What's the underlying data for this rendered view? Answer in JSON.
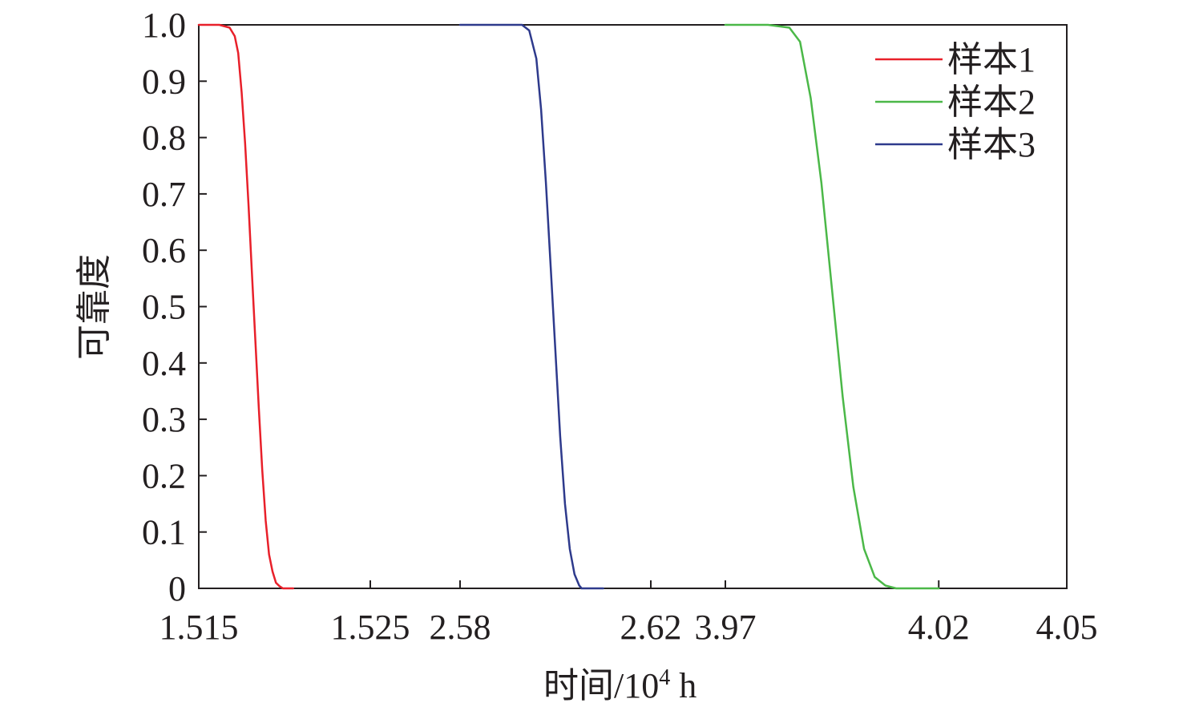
{
  "chart_data": {
    "type": "line",
    "xlabel_main": "时间/10",
    "xlabel_sup": "4",
    "xlabel_unit": " h",
    "ylabel": "可靠度",
    "ylim": [
      0,
      1.0
    ],
    "yticks": [
      "0",
      "0.1",
      "0.2",
      "0.3",
      "0.4",
      "0.5",
      "0.6",
      "0.7",
      "0.8",
      "0.9",
      "1.0"
    ],
    "x_segments": [
      {
        "range": [
          1.515,
          1.525
        ],
        "tick_labels": [
          "1.515",
          "1.525"
        ]
      },
      {
        "range": [
          2.58,
          2.62
        ],
        "tick_labels": [
          "2.58",
          "2.62"
        ]
      },
      {
        "range": [
          3.97,
          4.05
        ],
        "tick_labels": [
          "3.97",
          "4.02",
          "4.05"
        ]
      }
    ],
    "grid": false,
    "legend_position": "top-right",
    "series": [
      {
        "name": "样本1",
        "color": "#e8202a",
        "segment": 0,
        "x": [
          1.515,
          1.5162,
          1.5168,
          1.5171,
          1.5173,
          1.5175,
          1.5177,
          1.5179,
          1.5181,
          1.5183,
          1.5185,
          1.5187,
          1.5189,
          1.5191,
          1.5193,
          1.5195,
          1.5197,
          1.5199,
          1.5201,
          1.5205
        ],
        "values": [
          1.0,
          1.0,
          0.995,
          0.98,
          0.95,
          0.88,
          0.79,
          0.68,
          0.56,
          0.44,
          0.32,
          0.21,
          0.12,
          0.06,
          0.03,
          0.01,
          0.004,
          0.0,
          0.0,
          0.0
        ]
      },
      {
        "name": "样本2",
        "color": "#4bb848",
        "segment": 2,
        "x": [
          3.97,
          3.98,
          3.985,
          3.9875,
          3.99,
          3.9925,
          3.995,
          3.9975,
          4.0,
          4.0025,
          4.005,
          4.0075,
          4.01,
          4.0125,
          4.015,
          4.02
        ],
        "values": [
          1.0,
          1.0,
          0.995,
          0.97,
          0.87,
          0.72,
          0.53,
          0.34,
          0.18,
          0.07,
          0.02,
          0.005,
          0.0,
          0.0,
          0.0,
          0.0
        ]
      },
      {
        "name": "样本3",
        "color": "#2e3a8c",
        "segment": 1,
        "x": [
          2.58,
          2.593,
          2.5945,
          2.596,
          2.597,
          2.598,
          2.599,
          2.6,
          2.601,
          2.602,
          2.603,
          2.604,
          2.605,
          2.6055,
          2.607,
          2.61
        ],
        "values": [
          1.0,
          1.0,
          0.99,
          0.94,
          0.85,
          0.72,
          0.57,
          0.42,
          0.27,
          0.15,
          0.07,
          0.025,
          0.005,
          0.0,
          0.0,
          0.0
        ]
      }
    ]
  }
}
